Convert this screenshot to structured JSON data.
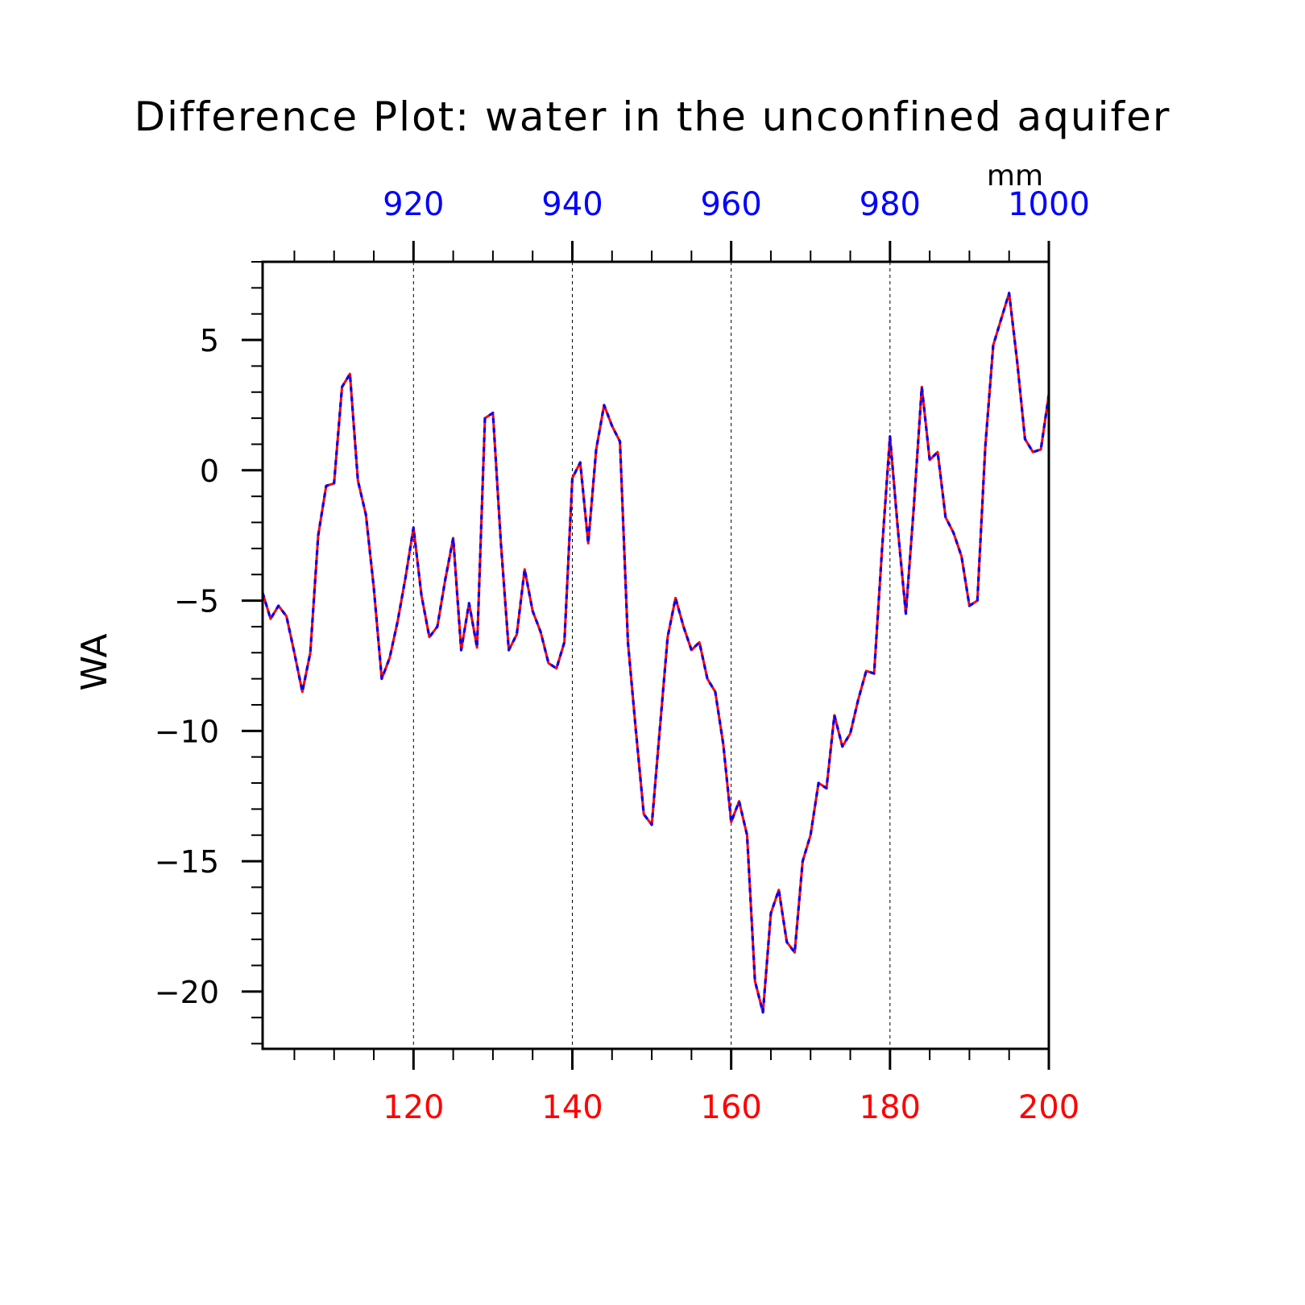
{
  "chart_data": {
    "type": "line",
    "title": "Difference Plot: water in the unconfined aquifer",
    "units": "mm",
    "ylabel": "WA",
    "ylim": [
      -22.2,
      8
    ],
    "xlim_bottom": [
      101,
      200
    ],
    "xlim_top": [
      901,
      1000
    ],
    "bottom_ticks": [
      120,
      140,
      160,
      180,
      200
    ],
    "top_ticks": [
      920,
      940,
      960,
      980,
      1000
    ],
    "y_ticks": [
      5,
      0,
      -5,
      -10,
      -15,
      -20
    ],
    "y_tick_labels": [
      "5",
      "0",
      "−5",
      "−10",
      "−15",
      "−20"
    ],
    "vertical_grid_at": [
      120,
      140,
      160,
      180
    ],
    "grid": "dashed vertical lines at labeled x ticks",
    "colors": {
      "bottom_axis": "#ff0000",
      "top_axis": "#0000ff",
      "series_a": "#ff0000",
      "series_b": "#0000ff"
    },
    "x": [
      101,
      102,
      103,
      104,
      105,
      106,
      107,
      108,
      109,
      110,
      111,
      112,
      113,
      114,
      115,
      116,
      117,
      118,
      119,
      120,
      121,
      122,
      123,
      124,
      125,
      126,
      127,
      128,
      129,
      130,
      131,
      132,
      133,
      134,
      135,
      136,
      137,
      138,
      139,
      140,
      141,
      142,
      143,
      144,
      145,
      146,
      147,
      148,
      149,
      150,
      151,
      152,
      153,
      154,
      155,
      156,
      157,
      158,
      159,
      160,
      161,
      162,
      163,
      164,
      165,
      166,
      167,
      168,
      169,
      170,
      171,
      172,
      173,
      174,
      175,
      176,
      177,
      178,
      179,
      180,
      181,
      182,
      183,
      184,
      185,
      186,
      187,
      188,
      189,
      190,
      191,
      192,
      193,
      194,
      195,
      196,
      197,
      198,
      199,
      200
    ],
    "series": [
      {
        "name": "",
        "color": "#ff0000",
        "style": "solid",
        "values": [
          -4.7,
          -5.7,
          -5.2,
          -5.6,
          -7.0,
          -8.5,
          -7.0,
          -2.5,
          -0.6,
          -0.5,
          3.2,
          3.7,
          -0.4,
          -1.7,
          -4.5,
          -8.0,
          -7.2,
          -5.8,
          -4.1,
          -2.2,
          -4.8,
          -6.4,
          -6.0,
          -4.2,
          -2.6,
          -6.9,
          -5.1,
          -6.8,
          2.0,
          2.2,
          -2.8,
          -6.9,
          -6.3,
          -3.8,
          -5.4,
          -6.2,
          -7.4,
          -7.6,
          -6.6,
          -0.3,
          0.3,
          -2.8,
          0.8,
          2.5,
          1.7,
          1.1,
          -6.6,
          -10.0,
          -13.2,
          -13.6,
          -10.0,
          -6.4,
          -4.9,
          -6.0,
          -6.9,
          -6.6,
          -8.0,
          -8.5,
          -10.5,
          -13.5,
          -12.7,
          -14.0,
          -19.6,
          -20.8,
          -17.0,
          -16.1,
          -18.1,
          -18.5,
          -15.0,
          -14.0,
          -12.0,
          -12.2,
          -9.4,
          -10.6,
          -10.1,
          -8.8,
          -7.7,
          -7.8,
          -3.0,
          1.3,
          -2.3,
          -5.5,
          -1.4,
          3.2,
          0.4,
          0.7,
          -1.8,
          -2.4,
          -3.3,
          -5.2,
          -5.0,
          0.9,
          4.8,
          5.8,
          6.8,
          4.2,
          1.2,
          0.7,
          0.8,
          2.9
        ]
      },
      {
        "name": "",
        "color": "#0000ff",
        "style": "dashed",
        "values": [
          -4.7,
          -5.7,
          -5.2,
          -5.6,
          -7.0,
          -8.5,
          -7.0,
          -2.5,
          -0.6,
          -0.5,
          3.2,
          3.7,
          -0.4,
          -1.7,
          -4.5,
          -8.0,
          -7.2,
          -5.8,
          -4.1,
          -2.2,
          -4.8,
          -6.4,
          -6.0,
          -4.2,
          -2.6,
          -6.9,
          -5.1,
          -6.8,
          2.0,
          2.2,
          -2.8,
          -6.9,
          -6.3,
          -3.8,
          -5.4,
          -6.2,
          -7.4,
          -7.6,
          -6.6,
          -0.3,
          0.3,
          -2.8,
          0.8,
          2.5,
          1.7,
          1.1,
          -6.6,
          -10.0,
          -13.2,
          -13.6,
          -10.0,
          -6.4,
          -4.9,
          -6.0,
          -6.9,
          -6.6,
          -8.0,
          -8.5,
          -10.5,
          -13.5,
          -12.7,
          -14.0,
          -19.6,
          -20.8,
          -17.0,
          -16.1,
          -18.1,
          -18.5,
          -15.0,
          -14.0,
          -12.0,
          -12.2,
          -9.4,
          -10.6,
          -10.1,
          -8.8,
          -7.7,
          -7.8,
          -3.0,
          1.3,
          -2.3,
          -5.5,
          -1.4,
          3.2,
          0.4,
          0.7,
          -1.8,
          -2.4,
          -3.3,
          -5.2,
          -5.0,
          0.9,
          4.8,
          5.8,
          6.8,
          4.2,
          1.2,
          0.7,
          0.8,
          2.9
        ]
      }
    ]
  }
}
